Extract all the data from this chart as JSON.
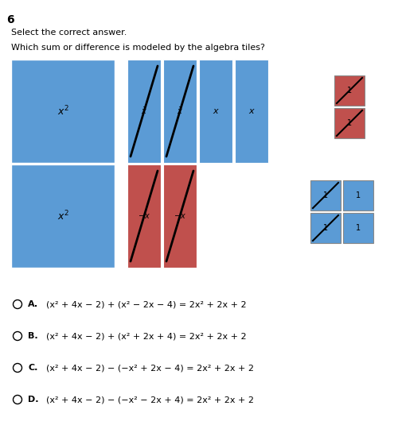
{
  "title_number": "6",
  "subtitle1": "Select the correct answer.",
  "subtitle2": "Which sum or difference is modeled by the algebra tiles?",
  "blue_color": "#5B9BD5",
  "red_color": "#C0504D",
  "options": [
    {
      "label": "A.",
      "text": "(x² + 4x − 2) + (x² − 2x − 4) = 2x² + 2x + 2"
    },
    {
      "label": "B.",
      "text": "(x² + 4x − 2) + (x² + 2x + 4) = 2x² + 2x + 2"
    },
    {
      "label": "C.",
      "text": "(x² + 4x − 2) − (−x² + 2x − 4) = 2x² + 2x + 2"
    },
    {
      "label": "D.",
      "text": "(x² + 4x − 2) − (−x² − 2x + 4) = 2x² + 2x + 2"
    }
  ]
}
